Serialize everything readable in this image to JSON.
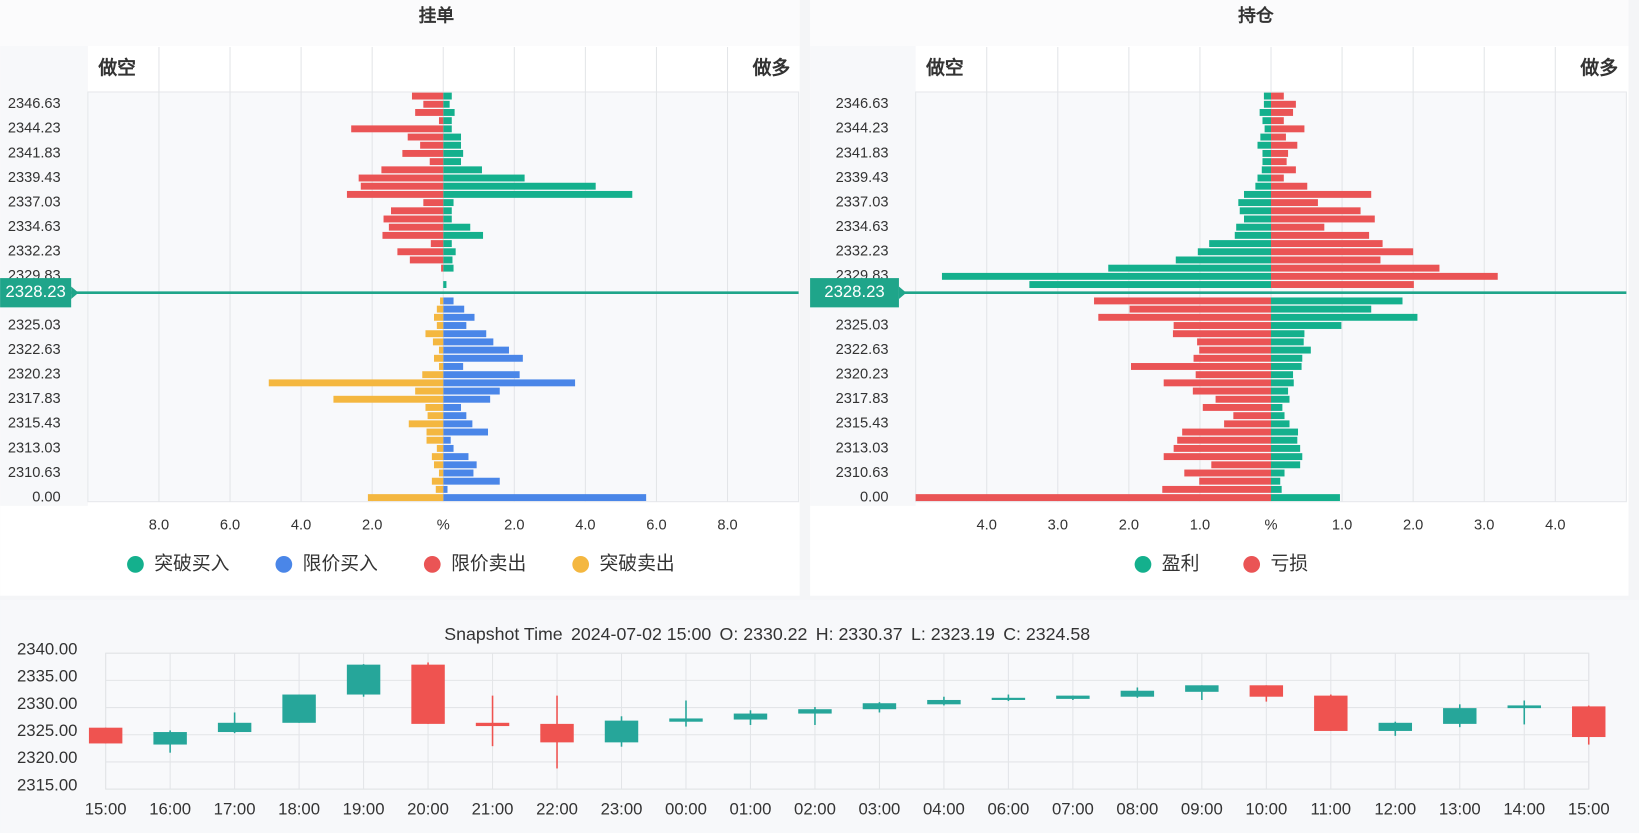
{
  "chart_data": [
    {
      "type": "bar",
      "title": "挂单",
      "left_label": "做空",
      "right_label": "做多",
      "categories": [
        null,
        "2346.63",
        null,
        null,
        "2344.23",
        null,
        null,
        "2341.83",
        null,
        null,
        "2339.43",
        null,
        null,
        "2337.03",
        null,
        null,
        "2334.63",
        null,
        null,
        "2332.23",
        null,
        null,
        "2329.83",
        null,
        null,
        null,
        null,
        null,
        "2325.03",
        null,
        null,
        "2322.63",
        null,
        null,
        "2320.23",
        null,
        null,
        "2317.83",
        null,
        null,
        "2315.43",
        null,
        null,
        "2313.03",
        null,
        null,
        "2310.63",
        null,
        null,
        "0.00"
      ],
      "current_price": 2328.23,
      "current_color": "#1fa58a",
      "series": [
        {
          "name": "突破买入",
          "color": "#14b08d",
          "values": [
            0.24,
            0.18,
            0.32,
            0.24,
            0.24,
            0.5,
            0.5,
            0.56,
            0.5,
            1.09,
            2.29,
            4.29,
            5.32,
            0.29,
            0.24,
            0.24,
            0.76,
            1.12,
            0.24,
            0.35,
            0.26,
            0.29,
            null,
            0.09,
            null,
            null,
            null,
            null,
            null,
            null,
            null,
            null,
            null,
            null,
            null,
            null,
            null,
            null,
            null,
            null,
            null,
            null,
            null,
            null,
            null,
            null,
            null,
            null,
            null,
            null
          ]
        },
        {
          "name": "限价买入",
          "color": "#4a86e8",
          "values": [
            null,
            null,
            null,
            null,
            null,
            null,
            null,
            null,
            null,
            null,
            null,
            null,
            null,
            null,
            null,
            null,
            null,
            null,
            null,
            null,
            null,
            null,
            null,
            null,
            null,
            0.29,
            0.59,
            0.88,
            0.65,
            1.21,
            1.41,
            1.85,
            2.24,
            0.56,
            2.15,
            3.71,
            1.59,
            1.32,
            0.5,
            0.65,
            0.82,
            1.26,
            0.21,
            0.29,
            0.71,
            0.94,
            0.85,
            1.59,
            0.12,
            5.71
          ]
        },
        {
          "name": "限价卖出",
          "color": "#ea5455",
          "values": [
            -0.88,
            -0.56,
            -0.79,
            -0.12,
            -2.59,
            -1.0,
            -0.65,
            -1.15,
            -0.38,
            -1.74,
            -2.38,
            -2.32,
            -2.71,
            -0.56,
            -1.47,
            -1.68,
            -1.53,
            -1.71,
            -0.35,
            -1.29,
            -0.94,
            -0.06,
            null,
            null,
            null,
            null,
            null,
            null,
            null,
            null,
            null,
            null,
            null,
            null,
            null,
            null,
            null,
            null,
            null,
            null,
            null,
            null,
            null,
            null,
            null,
            null,
            null,
            null,
            null,
            null
          ]
        },
        {
          "name": "突破卖出",
          "color": "#f4b740",
          "values": [
            null,
            null,
            null,
            null,
            null,
            null,
            null,
            null,
            null,
            null,
            null,
            null,
            null,
            null,
            null,
            null,
            null,
            null,
            null,
            null,
            null,
            null,
            null,
            null,
            null,
            -0.09,
            -0.18,
            -0.26,
            -0.18,
            -0.5,
            -0.29,
            -0.12,
            -0.26,
            -0.12,
            -0.59,
            -4.91,
            -0.79,
            -3.09,
            -0.5,
            -0.44,
            -0.97,
            -0.47,
            -0.47,
            -0.18,
            -0.32,
            -0.26,
            -0.12,
            -0.32,
            -0.21,
            -2.12
          ]
        }
      ],
      "xlim": [
        -10,
        10
      ],
      "xticks": [
        {
          "value": -8,
          "label": "8.0"
        },
        {
          "value": -6,
          "label": "6.0"
        },
        {
          "value": -4,
          "label": "4.0"
        },
        {
          "value": -2,
          "label": "2.0"
        },
        {
          "value": 0,
          "label": "%"
        },
        {
          "value": 2,
          "label": "2.0"
        },
        {
          "value": 4,
          "label": "4.0"
        },
        {
          "value": 6,
          "label": "6.0"
        },
        {
          "value": 8,
          "label": "8.0"
        }
      ],
      "grid": true,
      "legend": "bottom"
    },
    {
      "type": "bar",
      "title": "持仓",
      "left_label": "做空",
      "right_label": "做多",
      "categories": [
        null,
        "2346.63",
        null,
        null,
        "2344.23",
        null,
        null,
        "2341.83",
        null,
        null,
        "2339.43",
        null,
        null,
        "2337.03",
        null,
        null,
        "2334.63",
        null,
        null,
        "2332.23",
        null,
        null,
        "2329.83",
        null,
        null,
        null,
        null,
        null,
        "2325.03",
        null,
        null,
        "2322.63",
        null,
        null,
        "2320.23",
        null,
        null,
        "2317.83",
        null,
        null,
        "2315.43",
        null,
        null,
        "2313.03",
        null,
        null,
        "2310.63",
        null,
        null,
        "0.00"
      ],
      "current_price": 2328.23,
      "current_color": "#1fa58a",
      "series": [
        {
          "name": "盈利",
          "color": "#14b08d",
          "values": [
            -0.1,
            -0.1,
            -0.16,
            -0.12,
            -0.09,
            -0.15,
            -0.19,
            -0.12,
            -0.12,
            -0.13,
            -0.19,
            -0.22,
            -0.38,
            -0.46,
            -0.44,
            -0.38,
            -0.49,
            -0.51,
            -0.87,
            -1.03,
            -1.34,
            -2.29,
            -4.63,
            -3.4,
            null,
            1.85,
            1.41,
            2.06,
            0.99,
            0.47,
            0.46,
            0.56,
            0.44,
            0.43,
            0.31,
            0.32,
            0.24,
            0.26,
            0.16,
            0.19,
            0.26,
            0.38,
            0.37,
            0.41,
            0.44,
            0.41,
            0.19,
            0.13,
            0.15,
            0.97
          ]
        },
        {
          "name": "亏损",
          "color": "#ea5455",
          "values": [
            0.18,
            0.35,
            0.31,
            0.18,
            0.47,
            0.21,
            0.37,
            0.24,
            0.22,
            0.35,
            0.18,
            0.51,
            1.41,
            0.66,
            1.26,
            1.46,
            0.75,
            1.38,
            1.57,
            2.0,
            1.54,
            2.37,
            3.19,
            2.01,
            null,
            -2.49,
            -1.99,
            -2.43,
            -1.37,
            -1.38,
            -1.04,
            -1.01,
            -1.09,
            -1.97,
            -1.06,
            -1.51,
            -1.1,
            -0.78,
            -0.96,
            -0.53,
            -0.66,
            -1.25,
            -1.32,
            -1.37,
            -1.51,
            -0.84,
            -1.22,
            -1.01,
            -1.53,
            -5.0
          ]
        }
      ],
      "xlim": [
        -5,
        5
      ],
      "xticks": [
        {
          "value": -4,
          "label": "4.0"
        },
        {
          "value": -3,
          "label": "3.0"
        },
        {
          "value": -2,
          "label": "2.0"
        },
        {
          "value": -1,
          "label": "1.0"
        },
        {
          "value": 0,
          "label": "%"
        },
        {
          "value": 1,
          "label": "1.0"
        },
        {
          "value": 2,
          "label": "2.0"
        },
        {
          "value": 3,
          "label": "3.0"
        },
        {
          "value": 4,
          "label": "4.0"
        }
      ],
      "grid": true,
      "legend": "bottom"
    },
    {
      "type": "candlestick",
      "title": "Snapshot Time",
      "snapshot_time": "2024-07-02 15:00",
      "summary": [
        "O: 2330.22",
        "H: 2330.37",
        "L: 2323.19",
        "C: 2324.58"
      ],
      "categories": [
        "15:00",
        "16:00",
        "17:00",
        "18:00",
        "19:00",
        "20:00",
        "21:00",
        "22:00",
        "23:00",
        "00:00",
        "01:00",
        "02:00",
        "03:00",
        "04:00",
        "06:00",
        "07:00",
        "08:00",
        "09:00",
        "10:00",
        "11:00",
        "12:00",
        "13:00",
        "14:00",
        "15:00"
      ],
      "open": [
        2326.3,
        2323.2,
        2325.5,
        2327.2,
        2332.4,
        2337.9,
        2327.2,
        2327.0,
        2323.6,
        2327.4,
        2327.8,
        2328.9,
        2329.7,
        2330.6,
        2331.4,
        2331.6,
        2332.0,
        2332.9,
        2334.1,
        2332.2,
        2325.7,
        2327.0,
        2329.9,
        2330.22
      ],
      "high": [
        2326.3,
        2325.8,
        2329.1,
        2332.4,
        2338.0,
        2338.3,
        2332.2,
        2332.2,
        2328.4,
        2331.3,
        2329.5,
        2330.1,
        2331.0,
        2332.0,
        2332.4,
        2332.2,
        2333.7,
        2334.1,
        2334.1,
        2332.4,
        2327.4,
        2330.6,
        2331.3,
        2330.37
      ],
      "low": [
        2323.4,
        2321.7,
        2325.3,
        2327.2,
        2332.0,
        2327.0,
        2322.9,
        2318.8,
        2322.8,
        2326.5,
        2326.8,
        2326.8,
        2329.1,
        2330.4,
        2331.2,
        2331.4,
        2331.8,
        2331.4,
        2331.1,
        2325.7,
        2324.8,
        2326.4,
        2326.9,
        2323.19
      ],
      "close": [
        2323.4,
        2325.5,
        2327.2,
        2332.4,
        2337.9,
        2327.0,
        2326.6,
        2323.6,
        2327.6,
        2328.0,
        2328.9,
        2329.7,
        2330.8,
        2331.4,
        2331.8,
        2332.2,
        2333.1,
        2334.1,
        2332.0,
        2325.7,
        2327.2,
        2329.9,
        2330.4,
        2324.58
      ],
      "up_color": "#26a69a",
      "down_color": "#ef5350",
      "ylim": [
        2315,
        2340
      ],
      "yticks": [
        {
          "value": 2315,
          "label": "2315.00"
        },
        {
          "value": 2320,
          "label": "2320.00"
        },
        {
          "value": 2325,
          "label": "2325.00"
        },
        {
          "value": 2330,
          "label": "2330.00"
        },
        {
          "value": 2335,
          "label": "2335.00"
        },
        {
          "value": 2340,
          "label": "2340.00"
        }
      ],
      "grid": true
    }
  ]
}
